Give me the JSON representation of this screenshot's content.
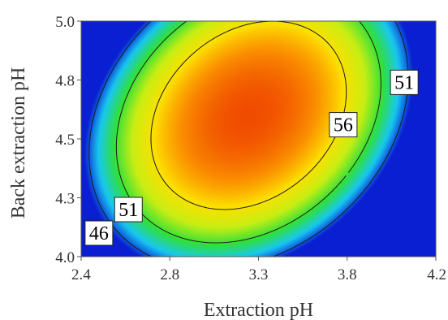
{
  "chart_data": {
    "type": "heatmap",
    "subtype": "contour",
    "title": "",
    "xlabel": "Extraction pH",
    "ylabel": "Back extraction pH",
    "xlim": [
      2.4,
      4.2
    ],
    "ylim": [
      4.0,
      5.0
    ],
    "x_ticks": [
      "2.4",
      "2.8",
      "3.3",
      "3.8",
      "4.2"
    ],
    "y_ticks": [
      "4.0",
      "4.3",
      "4.5",
      "4.8",
      "5.0"
    ],
    "colormap": [
      "#0a1ed2",
      "#18c8f0",
      "#31e03a",
      "#c8ee14",
      "#fce000",
      "#fb8e00",
      "#f04c00"
    ],
    "surface": {
      "peak_x": 3.25,
      "peak_y": 4.6,
      "peak_value": 62,
      "quadratic": {
        "a_x": -26,
        "a_y": -40,
        "b_xy": 16
      }
    },
    "contours": [
      {
        "value": 51,
        "labels": [
          {
            "text": "51",
            "x": 2.64,
            "y": 4.2
          },
          {
            "text": "51",
            "x": 4.04,
            "y": 4.74
          }
        ]
      },
      {
        "value": 56,
        "labels": [
          {
            "text": "56",
            "x": 3.73,
            "y": 4.56
          }
        ]
      },
      {
        "value": 46,
        "labels": [
          {
            "text": "46",
            "x": 2.49,
            "y": 4.1
          }
        ]
      }
    ],
    "grid": false,
    "legend": "none"
  }
}
